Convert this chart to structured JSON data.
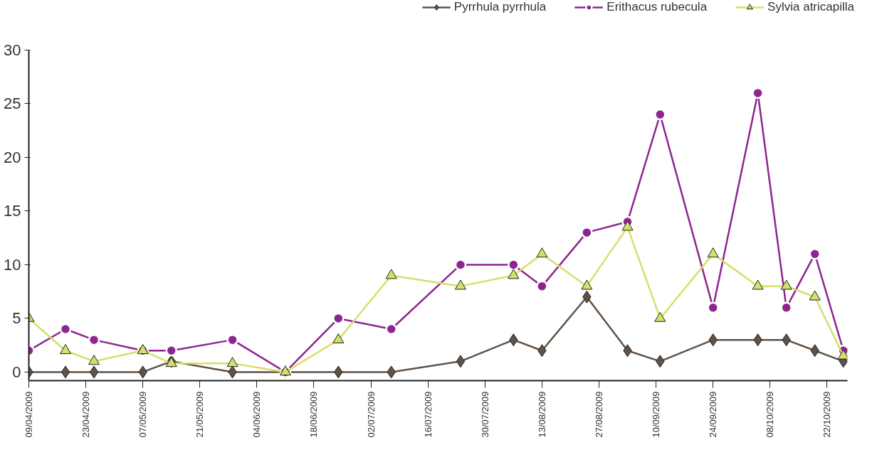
{
  "chart_data": {
    "type": "line",
    "x": [
      "2009-04-09",
      "2009-04-18",
      "2009-04-25",
      "2009-05-07",
      "2009-05-14",
      "2009-05-29",
      "2009-06-11",
      "2009-06-24",
      "2009-07-07",
      "2009-07-24",
      "2009-08-06",
      "2009-08-13",
      "2009-08-24",
      "2009-09-03",
      "2009-09-11",
      "2009-09-24",
      "2009-10-05",
      "2009-10-12",
      "2009-10-19",
      "2009-10-26"
    ],
    "series": [
      {
        "name": "Pyrrhula pyrrhula",
        "color": "#615246",
        "marker": "diamond",
        "values": [
          0,
          0,
          0,
          0,
          1,
          0,
          0,
          0,
          0,
          1,
          3,
          2,
          7,
          2,
          1,
          3,
          3,
          3,
          2,
          1
        ]
      },
      {
        "name": "Erithacus rubecula",
        "color": "#8e2590",
        "marker": "circle",
        "values": [
          2,
          4,
          3,
          2,
          2,
          3,
          0,
          5,
          4,
          10,
          10,
          8,
          13,
          14,
          24,
          6,
          26,
          6,
          11,
          2
        ]
      },
      {
        "name": "Sylvia atricapilla",
        "color": "#d4e06a",
        "marker": "triangle",
        "values": [
          5,
          2,
          1,
          2,
          0.8,
          0.8,
          0,
          3,
          9,
          8,
          9,
          11,
          8,
          13.5,
          5,
          11,
          8,
          8,
          7,
          1.5
        ]
      }
    ],
    "xlim": [
      "2009-04-09",
      "2009-10-27"
    ],
    "xticks": [
      {
        "value": "2009-04-09",
        "label": "09/04/2009"
      },
      {
        "value": "2009-04-23",
        "label": "23/04/2009"
      },
      {
        "value": "2009-05-07",
        "label": "07/05/2009"
      },
      {
        "value": "2009-05-21",
        "label": "21/05/2009"
      },
      {
        "value": "2009-06-04",
        "label": "04/06/2009"
      },
      {
        "value": "2009-06-18",
        "label": "18/06/2009"
      },
      {
        "value": "2009-07-02",
        "label": "02/07/2009"
      },
      {
        "value": "2009-07-16",
        "label": "16/07/2009"
      },
      {
        "value": "2009-07-30",
        "label": "30/07/2009"
      },
      {
        "value": "2009-08-13",
        "label": "13/08/2009"
      },
      {
        "value": "2009-08-27",
        "label": "27/08/2009"
      },
      {
        "value": "2009-09-10",
        "label": "10/09/2009"
      },
      {
        "value": "2009-09-24",
        "label": "24/09/2009"
      },
      {
        "value": "2009-10-08",
        "label": "08/10/2009"
      },
      {
        "value": "2009-10-22",
        "label": "22/10/2009"
      }
    ],
    "ylim": [
      -0.8,
      30
    ],
    "yticks": [
      0,
      5,
      10,
      15,
      20,
      25,
      30
    ],
    "grid": false,
    "legend": "top right",
    "line_style": "solid"
  }
}
